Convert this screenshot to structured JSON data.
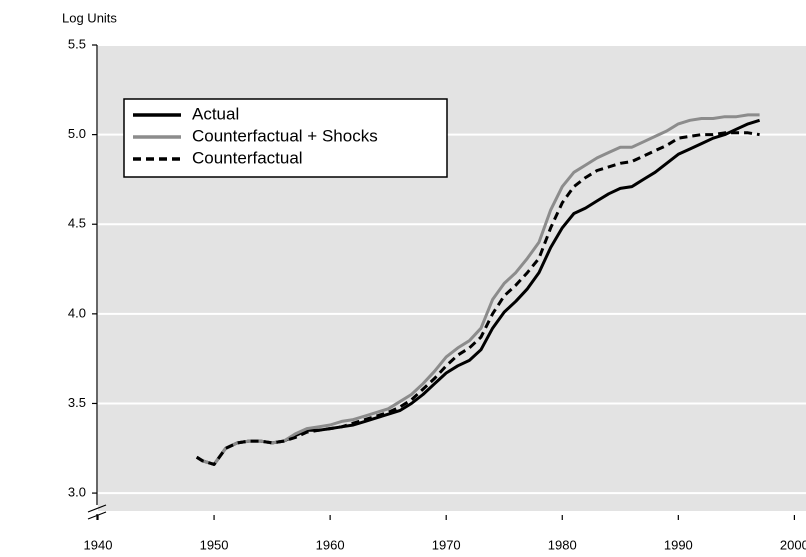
{
  "chart_data": {
    "type": "line",
    "y_axis_label": "Log Units",
    "x": [
      1948.5,
      1949,
      1950,
      1951,
      1952,
      1953,
      1954,
      1955,
      1956,
      1957,
      1958,
      1959,
      1960,
      1961,
      1962,
      1963,
      1964,
      1965,
      1966,
      1967,
      1968,
      1969,
      1970,
      1971,
      1972,
      1973,
      1974,
      1975,
      1976,
      1977,
      1978,
      1979,
      1980,
      1981,
      1982,
      1983,
      1984,
      1985,
      1986,
      1987,
      1988,
      1989,
      1990,
      1991,
      1992,
      1993,
      1994,
      1995,
      1996,
      1997
    ],
    "series": [
      {
        "name": "Actual",
        "color": "#000000",
        "style": "solid",
        "values": [
          3.2,
          3.18,
          3.16,
          3.25,
          3.28,
          3.29,
          3.29,
          3.28,
          3.29,
          3.32,
          3.35,
          3.35,
          3.36,
          3.37,
          3.38,
          3.4,
          3.42,
          3.44,
          3.46,
          3.5,
          3.55,
          3.61,
          3.67,
          3.71,
          3.74,
          3.8,
          3.92,
          4.01,
          4.07,
          4.14,
          4.23,
          4.37,
          4.48,
          4.56,
          4.59,
          4.63,
          4.67,
          4.7,
          4.71,
          4.75,
          4.79,
          4.84,
          4.89,
          4.92,
          4.95,
          4.98,
          5.0,
          5.03,
          5.06,
          5.08
        ]
      },
      {
        "name": "Counterfactual + Shocks",
        "color": "#8c8c8c",
        "style": "solid",
        "values": [
          3.2,
          3.18,
          3.16,
          3.25,
          3.28,
          3.29,
          3.29,
          3.28,
          3.29,
          3.33,
          3.36,
          3.37,
          3.38,
          3.4,
          3.41,
          3.43,
          3.45,
          3.47,
          3.51,
          3.55,
          3.61,
          3.68,
          3.76,
          3.81,
          3.85,
          3.92,
          4.08,
          4.17,
          4.23,
          4.31,
          4.4,
          4.58,
          4.71,
          4.79,
          4.83,
          4.87,
          4.9,
          4.93,
          4.93,
          4.96,
          4.99,
          5.02,
          5.06,
          5.08,
          5.09,
          5.09,
          5.1,
          5.1,
          5.11,
          5.11
        ]
      },
      {
        "name": "Counterfactual",
        "color": "#000000",
        "style": "dashed",
        "values": [
          3.2,
          3.18,
          3.16,
          3.25,
          3.28,
          3.29,
          3.29,
          3.28,
          3.29,
          3.31,
          3.34,
          3.35,
          3.36,
          3.37,
          3.39,
          3.41,
          3.43,
          3.45,
          3.48,
          3.52,
          3.58,
          3.64,
          3.71,
          3.77,
          3.81,
          3.87,
          4.0,
          4.1,
          4.16,
          4.23,
          4.31,
          4.48,
          4.62,
          4.71,
          4.76,
          4.8,
          4.82,
          4.84,
          4.85,
          4.88,
          4.91,
          4.94,
          4.98,
          4.99,
          5.0,
          5.0,
          5.01,
          5.01,
          5.01,
          5.0
        ]
      }
    ],
    "xlim": [
      1940,
      2001
    ],
    "xticks": [
      1940,
      1950,
      1960,
      1970,
      1980,
      1990,
      2000
    ],
    "ylim": [
      2.9,
      5.5
    ],
    "yticks": [
      {
        "value": 3.0,
        "label": "3.0"
      },
      3.5,
      {
        "value": 4.0,
        "label": "4.0"
      },
      4.5,
      {
        "value": 5.0,
        "label": "5.0"
      },
      5.5
    ],
    "grid": true,
    "legend": "upper left"
  }
}
